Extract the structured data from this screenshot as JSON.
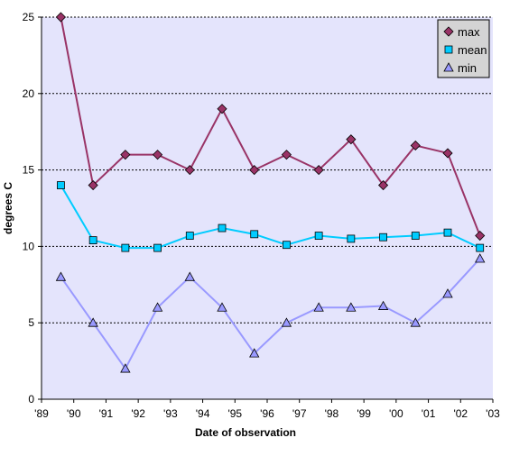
{
  "chart_data": {
    "type": "line",
    "xlabel": "Date of observation",
    "ylabel": "degrees C",
    "ylim": [
      0,
      25
    ],
    "yticks": [
      0,
      5,
      10,
      15,
      20,
      25
    ],
    "xticks": [
      "'89",
      "'90",
      "'91",
      "'92",
      "'93",
      "'94",
      "'95",
      "'96",
      "'97",
      "'98",
      "'99",
      "'00",
      "'01",
      "'02",
      "'03"
    ],
    "xlim": [
      1989,
      2003
    ],
    "grid": "horizontal dotted",
    "legend_position": "top-right",
    "plot_background": "#e4e4fc",
    "x": [
      1989.6,
      1990.6,
      1991.6,
      1992.6,
      1993.6,
      1994.6,
      1995.6,
      1996.6,
      1997.6,
      1998.6,
      1999.6,
      2000.6,
      2001.6,
      2002.6
    ],
    "series": [
      {
        "name": "max",
        "color": "#993366",
        "marker": "diamond",
        "values": [
          25,
          14,
          16,
          16,
          15,
          19,
          15,
          16,
          15,
          17,
          14,
          16.6,
          16.1,
          10.7
        ]
      },
      {
        "name": "mean",
        "color": "#00ccff",
        "marker": "square",
        "values": [
          14,
          10.4,
          9.9,
          9.9,
          10.7,
          11.2,
          10.8,
          10.1,
          10.7,
          10.5,
          10.6,
          10.7,
          10.9,
          9.9
        ]
      },
      {
        "name": "min",
        "color": "#9999ff",
        "marker": "triangle",
        "values": [
          8,
          5,
          2,
          6,
          8,
          6,
          3,
          5,
          6,
          6,
          6.1,
          5,
          6.9,
          9.2
        ]
      }
    ]
  }
}
